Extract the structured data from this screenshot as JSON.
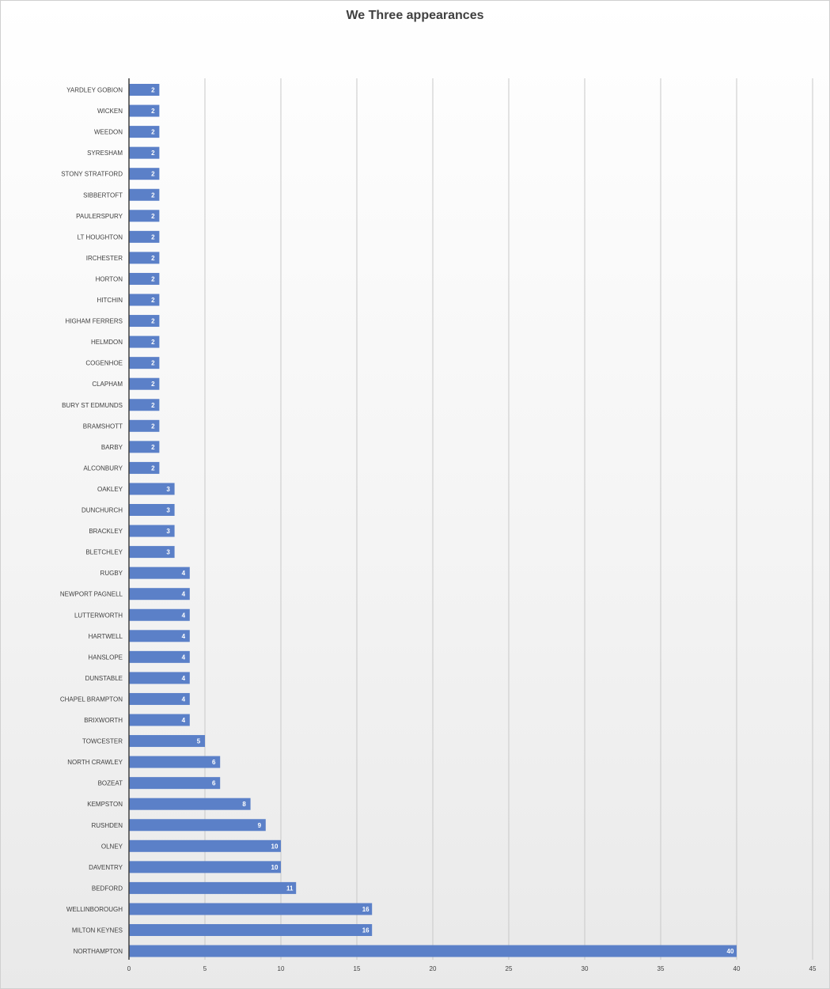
{
  "chart_data": {
    "type": "bar",
    "orientation": "horizontal",
    "title": "We Three appearances",
    "xlabel": "",
    "ylabel": "",
    "categories": [
      "YARDLEY GOBION",
      "WICKEN",
      "WEEDON",
      "SYRESHAM",
      "STONY STRATFORD",
      "SIBBERTOFT",
      "PAULERSPURY",
      "LT HOUGHTON",
      "IRCHESTER",
      "HORTON",
      "HITCHIN",
      "HIGHAM FERRERS",
      "HELMDON",
      "COGENHOE",
      "CLAPHAM",
      "BURY ST EDMUNDS",
      "BRAMSHOTT",
      "BARBY",
      "ALCONBURY",
      "OAKLEY",
      "DUNCHURCH",
      "BRACKLEY",
      "BLETCHLEY",
      "RUGBY",
      "NEWPORT PAGNELL",
      "LUTTERWORTH",
      "HARTWELL",
      "HANSLOPE",
      "DUNSTABLE",
      "CHAPEL BRAMPTON",
      "BRIXWORTH",
      "TOWCESTER",
      "NORTH CRAWLEY",
      "BOZEAT",
      "KEMPSTON",
      "RUSHDEN",
      "OLNEY",
      "DAVENTRY",
      "BEDFORD",
      "WELLINBOROUGH",
      "MILTON KEYNES",
      "NORTHAMPTON"
    ],
    "values": [
      2,
      2,
      2,
      2,
      2,
      2,
      2,
      2,
      2,
      2,
      2,
      2,
      2,
      2,
      2,
      2,
      2,
      2,
      2,
      3,
      3,
      3,
      3,
      4,
      4,
      4,
      4,
      4,
      4,
      4,
      4,
      5,
      6,
      6,
      8,
      9,
      10,
      10,
      11,
      16,
      16,
      40
    ],
    "xlim": [
      0,
      45
    ],
    "xticks": [
      0,
      5,
      10,
      15,
      20,
      25,
      30,
      35,
      40,
      45
    ],
    "grid": true,
    "data_labels": true,
    "bar_color": "#5b80c8",
    "grid_color": "#c8c8c8",
    "text_color": "#404040"
  }
}
